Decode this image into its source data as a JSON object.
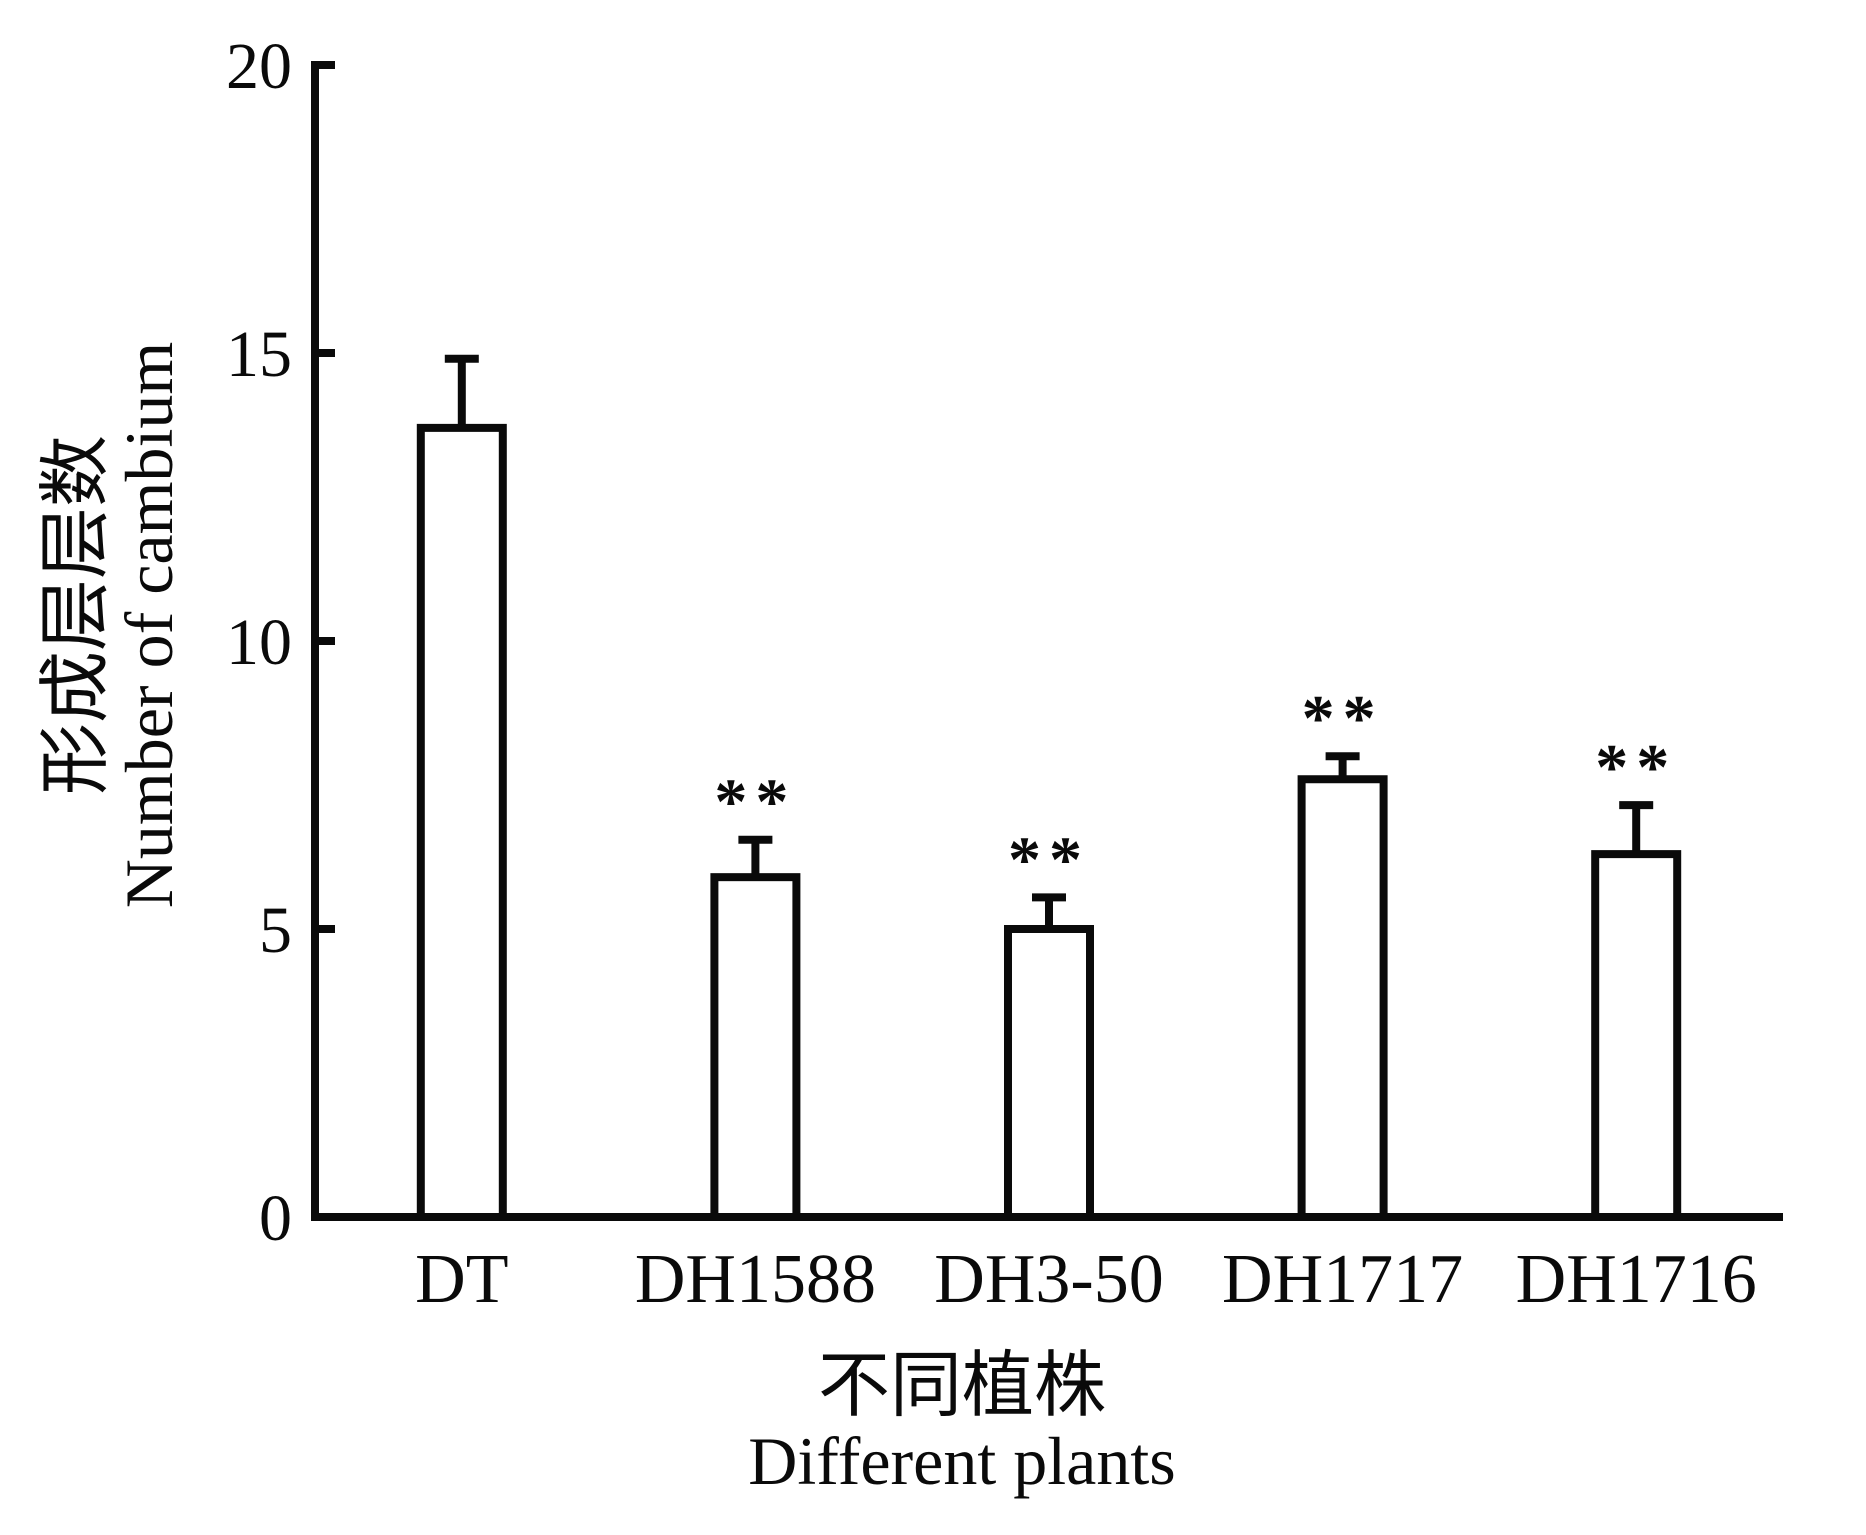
{
  "chart_data": {
    "type": "bar",
    "title": "",
    "categories": [
      "DT",
      "DH1588",
      "DH3-50",
      "DH1717",
      "DH1716"
    ],
    "values": [
      13.7,
      5.9,
      5.0,
      7.6,
      6.3
    ],
    "errors_upper": [
      1.2,
      0.65,
      0.55,
      0.4,
      0.85
    ],
    "significance": [
      "",
      "**",
      "**",
      "**",
      "**"
    ],
    "ylabel_zh": "形成层层数",
    "ylabel_en": "Number of cambium",
    "xlabel_zh": "不同植株",
    "xlabel_en": "Different plants",
    "yticks": [
      0,
      5,
      10,
      15,
      20
    ],
    "ylim": [
      0,
      20
    ],
    "grid": false,
    "legend": null,
    "bar_fill": "#ffffff",
    "line_color": "#0a0a0a",
    "background": "#ffffff"
  }
}
